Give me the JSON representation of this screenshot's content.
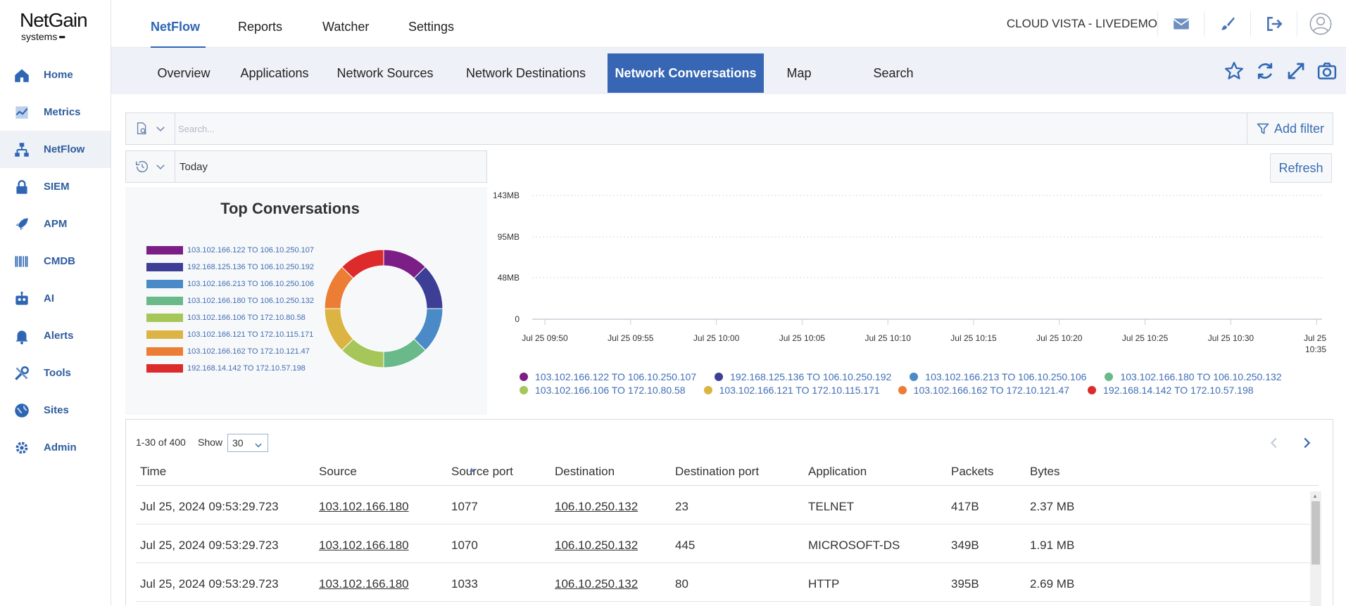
{
  "brand": {
    "name": "NetGain",
    "sub": "systems",
    "dots": "•••"
  },
  "sidebar": {
    "items": [
      {
        "label": "Home",
        "icon": "home-icon"
      },
      {
        "label": "Metrics",
        "icon": "metrics-icon"
      },
      {
        "label": "NetFlow",
        "icon": "netflow-icon",
        "active": true
      },
      {
        "label": "SIEM",
        "icon": "lock-icon"
      },
      {
        "label": "APM",
        "icon": "rocket-icon"
      },
      {
        "label": "CMDB",
        "icon": "barcode-icon"
      },
      {
        "label": "AI",
        "icon": "robot-icon"
      },
      {
        "label": "Alerts",
        "icon": "bell-icon"
      },
      {
        "label": "Tools",
        "icon": "tools-icon"
      },
      {
        "label": "Sites",
        "icon": "globe-icon"
      },
      {
        "label": "Admin",
        "icon": "gear-icon"
      }
    ]
  },
  "header": {
    "tabs": [
      {
        "label": "NetFlow",
        "active": true
      },
      {
        "label": "Reports"
      },
      {
        "label": "Watcher"
      },
      {
        "label": "Settings"
      }
    ],
    "tenant": "CLOUD VISTA - LIVEDEMO",
    "icons": [
      "mail-icon",
      "brush-icon",
      "logout-icon",
      "user-avatar-icon"
    ]
  },
  "subnav": {
    "tabs": [
      {
        "label": "Overview"
      },
      {
        "label": "Applications"
      },
      {
        "label": "Network Sources"
      },
      {
        "label": "Network Destinations"
      },
      {
        "label": "Network Conversations",
        "active": true
      },
      {
        "label": "Map"
      },
      {
        "label": "Search"
      }
    ],
    "icons": [
      "star-icon",
      "refresh-icon",
      "expand-icon",
      "camera-icon"
    ]
  },
  "filters": {
    "search_placeholder": "Search...",
    "add_filter_label": "Add filter",
    "time_value": "Today",
    "refresh_label": "Refresh"
  },
  "colors": {
    "accent": "#3767b4",
    "series": [
      "#7b1f86",
      "#3d3f96",
      "#4a8ac6",
      "#69b98a",
      "#a6c65a",
      "#dcb444",
      "#ec7d34",
      "#dd2b2b"
    ]
  },
  "donut": {
    "title": "Top Conversations"
  },
  "chart_data": [
    {
      "type": "pie",
      "title": "Top Conversations",
      "categories": [
        "103.102.166.122 TO 106.10.250.107",
        "192.168.125.136 TO 106.10.250.192",
        "103.102.166.213 TO 106.10.250.106",
        "103.102.166.180 TO 106.10.250.132",
        "103.102.166.106 TO 172.10.80.58",
        "103.102.166.121 TO 172.10.115.171",
        "103.102.166.162 TO 172.10.121.47",
        "192.168.14.142 TO 172.10.57.198"
      ],
      "values": [
        12.5,
        12.5,
        12.5,
        12.5,
        12.5,
        12.5,
        12.5,
        12.5
      ],
      "legend": "left",
      "donut": true
    },
    {
      "type": "area",
      "x": [
        "Jul 25 09:50",
        "Jul 25 09:55",
        "Jul 25 10:00",
        "Jul 25 10:05",
        "Jul 25 10:10",
        "Jul 25 10:15",
        "Jul 25 10:20",
        "Jul 25 10:25",
        "Jul 25 10:30",
        "Jul 25 10:35"
      ],
      "y_ticks": [
        "0",
        "48MB",
        "95MB",
        "143MB"
      ],
      "ylim": [
        0,
        143
      ],
      "grid": true,
      "legend": "bottom",
      "series": [
        {
          "name": "103.102.166.122 TO 106.10.250.107",
          "values": [
            0,
            0,
            0,
            0,
            0,
            0,
            0,
            0,
            0,
            0
          ]
        },
        {
          "name": "192.168.125.136 TO 106.10.250.192",
          "values": [
            0,
            0,
            0,
            0,
            0,
            0,
            0,
            0,
            0,
            0
          ]
        },
        {
          "name": "103.102.166.213 TO 106.10.250.106",
          "values": [
            0,
            0,
            0,
            0,
            0,
            0,
            0,
            0,
            0,
            0
          ]
        },
        {
          "name": "103.102.166.180 TO 106.10.250.132",
          "values": [
            0,
            0,
            0,
            0,
            0,
            0,
            0,
            0,
            0,
            0
          ]
        },
        {
          "name": "103.102.166.106 TO 172.10.80.58",
          "values": [
            0,
            0,
            0,
            0,
            0,
            0,
            0,
            0,
            0,
            0
          ]
        },
        {
          "name": "103.102.166.121 TO 172.10.115.171",
          "values": [
            0,
            0,
            0,
            0,
            0,
            0,
            0,
            0,
            0,
            0
          ]
        },
        {
          "name": "103.102.166.162 TO 172.10.121.47",
          "values": [
            0,
            0,
            0,
            0,
            0,
            0,
            0,
            0,
            0,
            0
          ]
        },
        {
          "name": "192.168.14.142 TO 172.10.57.198",
          "values": [
            0,
            0,
            0,
            0,
            0,
            0,
            0,
            0,
            0,
            0
          ]
        }
      ]
    }
  ],
  "table": {
    "pager_info": "1-30 of 400",
    "show_label": "Show",
    "page_size": "30",
    "columns": [
      "Time",
      "Source",
      "Source port",
      "Destination",
      "Destination port",
      "Application",
      "Packets",
      "Bytes"
    ],
    "sort_indicator": "▲",
    "rows": [
      [
        "Jul 25, 2024 09:53:29.723",
        "103.102.166.180",
        "1077",
        "106.10.250.132",
        "23",
        "TELNET",
        "417B",
        "2.37 MB"
      ],
      [
        "Jul 25, 2024 09:53:29.723",
        "103.102.166.180",
        "1070",
        "106.10.250.132",
        "445",
        "MICROSOFT-DS",
        "349B",
        "1.91 MB"
      ],
      [
        "Jul 25, 2024 09:53:29.723",
        "103.102.166.180",
        "1033",
        "106.10.250.132",
        "80",
        "HTTP",
        "395B",
        "2.69 MB"
      ]
    ]
  }
}
